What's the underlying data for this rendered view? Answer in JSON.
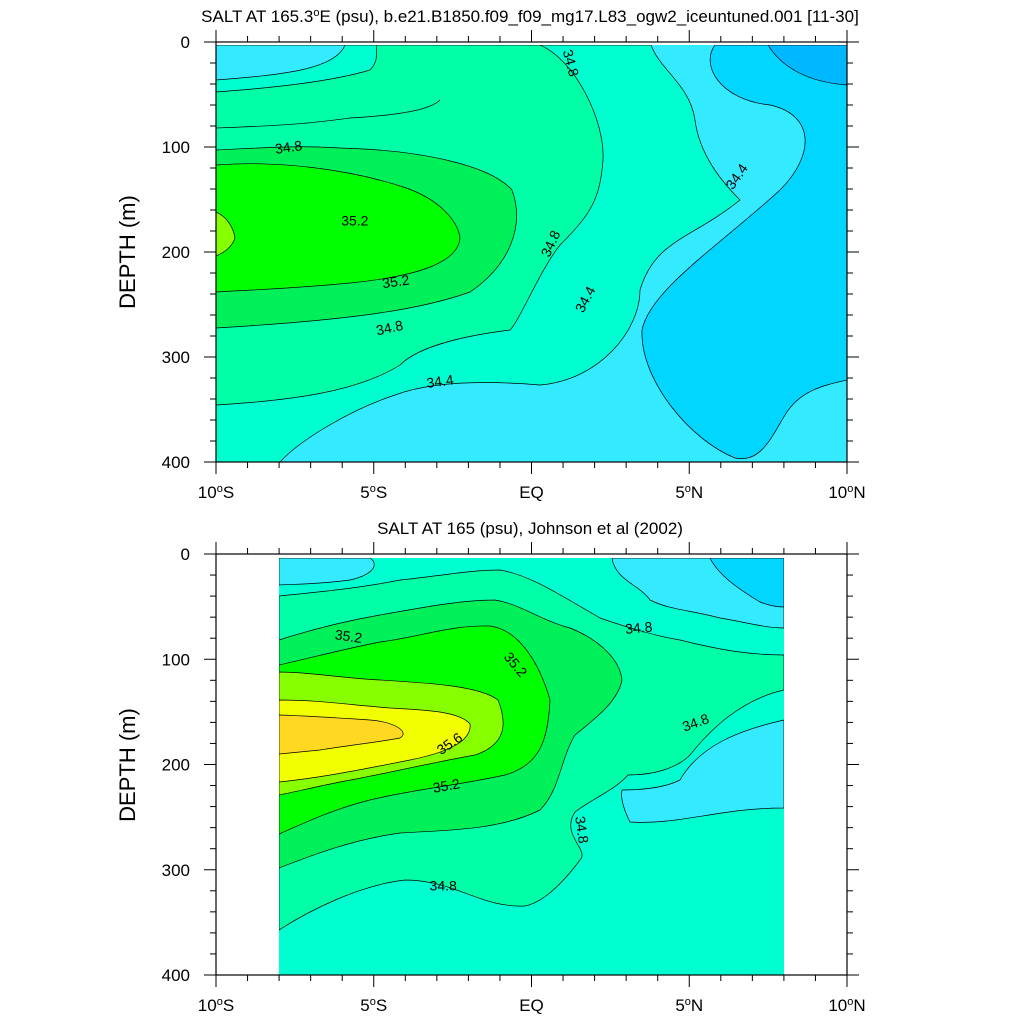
{
  "chart_data": [
    {
      "type": "heatmap",
      "subtype": "filled-contour",
      "title": "SALT AT 165.3°E (psu), b.e21.B1850.f09_f09_mg17.L83_ogw2_iceuntuned.001 [11-30]",
      "title_prefix": "SALT AT 165.3",
      "title_suffix": "E (psu), b.e21.B1850.f09_f09_mg17.L83_ogw2_iceuntuned.001 [11-30]",
      "xlabel": "",
      "ylabel": "DEPTH (m)",
      "xlim": [
        -10,
        10
      ],
      "ylim": [
        0,
        400
      ],
      "y_reversed": true,
      "data_extent": {
        "x": [
          -10,
          10
        ],
        "depth": [
          3,
          400
        ]
      },
      "x_ticks": [
        {
          "value": -10,
          "num": "10",
          "hemi": "S"
        },
        {
          "value": -5,
          "num": "5",
          "hemi": "S"
        },
        {
          "value": 0,
          "num": "EQ",
          "hemi": ""
        },
        {
          "value": 5,
          "num": "5",
          "hemi": "N"
        },
        {
          "value": 10,
          "num": "10",
          "hemi": "N"
        }
      ],
      "y_ticks": [
        0,
        100,
        200,
        300,
        400
      ],
      "contour_labels": [
        {
          "text": "34.8",
          "x": 1.25,
          "depth": 20,
          "angle": 75
        },
        {
          "text": "34.8",
          "x": -7.7,
          "depth": 100,
          "angle": -8
        },
        {
          "text": "35.2",
          "x": -5.6,
          "depth": 170,
          "angle": 0
        },
        {
          "text": "35.2",
          "x": -4.3,
          "depth": 228,
          "angle": -8
        },
        {
          "text": "34.8",
          "x": 0.6,
          "depth": 192,
          "angle": -65
        },
        {
          "text": "34.4",
          "x": 6.5,
          "depth": 128,
          "angle": -55
        },
        {
          "text": "34.4",
          "x": 1.7,
          "depth": 245,
          "angle": -62
        },
        {
          "text": "34.8",
          "x": -4.5,
          "depth": 272,
          "angle": -12
        },
        {
          "text": "34.4",
          "x": -2.9,
          "depth": 323,
          "angle": -8
        }
      ]
    },
    {
      "type": "heatmap",
      "subtype": "filled-contour",
      "title": "SALT AT 165 (psu), Johnson et al (2002)",
      "xlabel": "",
      "ylabel": "DEPTH (m)",
      "xlim": [
        -10,
        10
      ],
      "ylim": [
        0,
        400
      ],
      "y_reversed": true,
      "data_extent": {
        "x": [
          -8,
          8
        ],
        "depth": [
          5,
          400
        ]
      },
      "x_ticks": [
        {
          "value": -10,
          "num": "10",
          "hemi": "S"
        },
        {
          "value": -5,
          "num": "5",
          "hemi": "S"
        },
        {
          "value": 0,
          "num": "EQ",
          "hemi": ""
        },
        {
          "value": 5,
          "num": "5",
          "hemi": "N"
        },
        {
          "value": 10,
          "num": "10",
          "hemi": "N"
        }
      ],
      "y_ticks": [
        0,
        100,
        200,
        300,
        400
      ],
      "contour_labels": [
        {
          "text": "35.2",
          "x": -5.8,
          "depth": 78,
          "angle": 8
        },
        {
          "text": "35.2",
          "x": -0.5,
          "depth": 105,
          "angle": 50
        },
        {
          "text": "34.8",
          "x": 3.4,
          "depth": 70,
          "angle": -5
        },
        {
          "text": "35.6",
          "x": -2.6,
          "depth": 180,
          "angle": -35
        },
        {
          "text": "34.8",
          "x": 5.2,
          "depth": 160,
          "angle": -20
        },
        {
          "text": "35.2",
          "x": -2.7,
          "depth": 220,
          "angle": -10
        },
        {
          "text": "34.8",
          "x": 1.6,
          "depth": 262,
          "angle": 82
        },
        {
          "text": "34.8",
          "x": -2.8,
          "depth": 315,
          "angle": 0
        }
      ]
    }
  ],
  "colors": {
    "c34_0": "#00b8ff",
    "c34_2": "#00d6ff",
    "c34_4": "#33eaff",
    "c34_6": "#00ffd0",
    "c34_8": "#00ffa6",
    "c35_0": "#00f05a",
    "c35_2": "#00ff00",
    "c35_4": "#88ff00",
    "c35_6": "#f2ff00",
    "c35_8": "#ffd822"
  }
}
